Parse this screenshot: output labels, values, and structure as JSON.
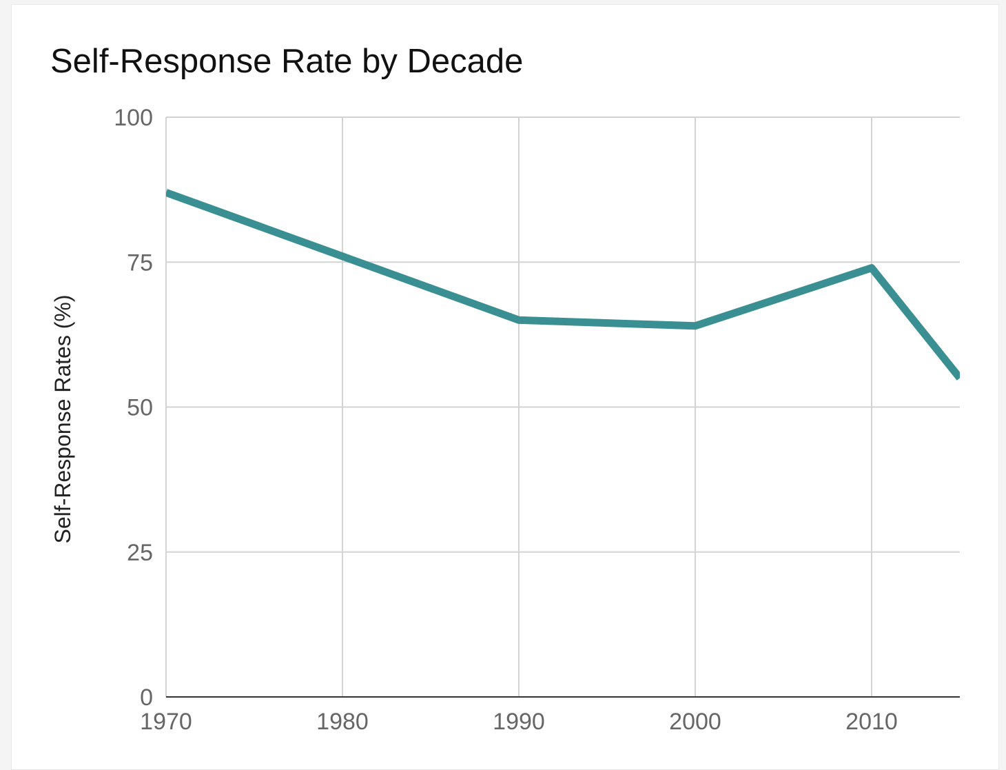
{
  "chart_data": {
    "type": "line",
    "title": "Self-Response Rate by Decade",
    "xlabel": "",
    "ylabel": "Self-Response Rates (%)",
    "x_ticks": [
      "1970",
      "1980",
      "1990",
      "2000",
      "2010"
    ],
    "y_ticks": [
      "0",
      "25",
      "50",
      "75",
      "100"
    ],
    "xlim": [
      1970,
      2015
    ],
    "ylim": [
      0,
      100
    ],
    "grid": true,
    "series": [
      {
        "color": "#3a8f92",
        "x": [
          1970,
          1980,
          1990,
          2000,
          2010,
          2015
        ],
        "y": [
          87,
          76,
          65,
          64,
          74,
          55
        ]
      }
    ]
  }
}
